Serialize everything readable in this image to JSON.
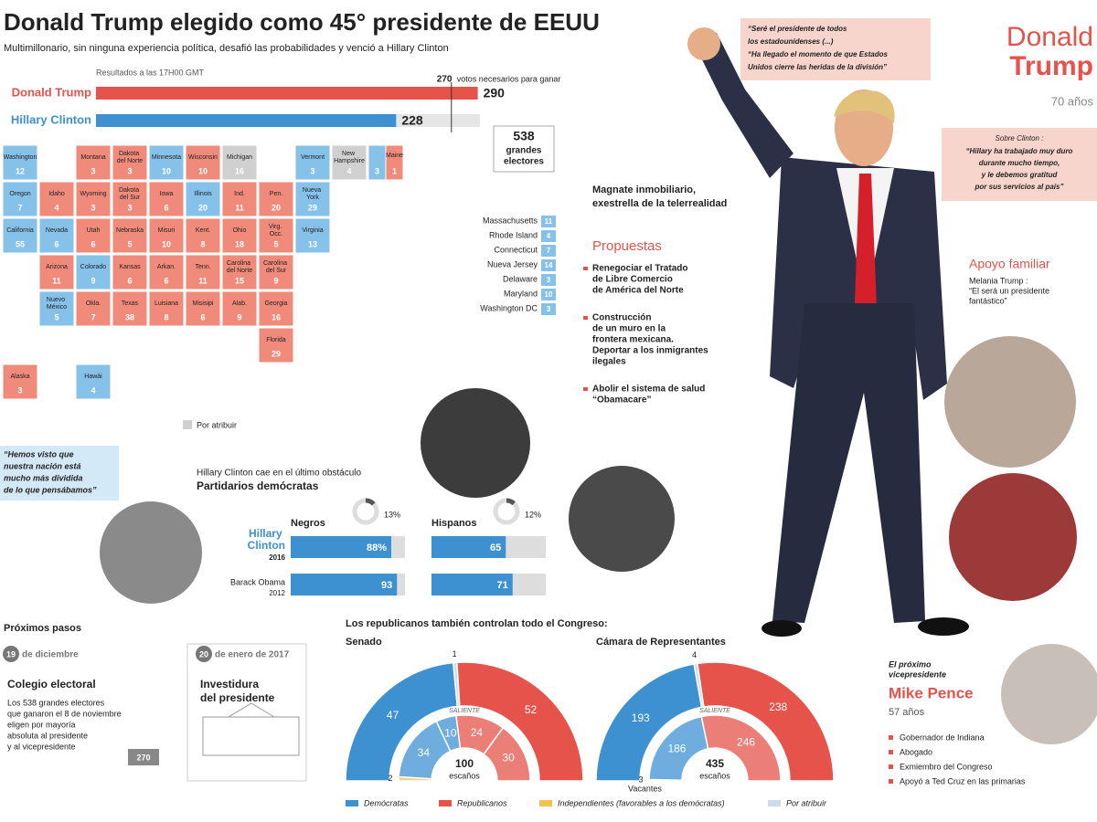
{
  "header": {
    "title": "Donald Trump elegido como 45° presidente de EEUU",
    "subtitle": "Multimillonario, sin ninguna experiencia política, desafió las probabilidades y venció a Hillary Clinton"
  },
  "results": {
    "note": "Resultados a las 17H00 GMT",
    "needed": 270,
    "needed_label": "votos necesarios para ganar",
    "total": 538,
    "total_label": [
      "grandes",
      "electores"
    ],
    "candidates": [
      {
        "name": "Donald Trump",
        "votes": 290,
        "color": "#e5534b"
      },
      {
        "name": "Hillary Clinton",
        "votes": 228,
        "color": "#3d91d1"
      }
    ]
  },
  "map": {
    "colors": {
      "R": "#f08b7b",
      "D": "#86c1ea",
      "P": "#d0d0d0"
    },
    "pending_label": "Por atribuir",
    "states": [
      {
        "name": "Washington",
        "votes": 12,
        "winner": "D"
      },
      {
        "name": "Montana",
        "votes": 3,
        "winner": "R"
      },
      {
        "name": "Dakota del Norte",
        "votes": 3,
        "winner": "R"
      },
      {
        "name": "Minnesota",
        "votes": 10,
        "winner": "D"
      },
      {
        "name": "Wisconsin",
        "votes": 10,
        "winner": "R"
      },
      {
        "name": "Michigan",
        "votes": 16,
        "winner": "P"
      },
      {
        "name": "Vermont",
        "votes": 3,
        "winner": "D"
      },
      {
        "name": "New Hampshire",
        "votes": 4,
        "winner": "P"
      },
      {
        "name": "Maine",
        "split": [
          {
            "votes": 3,
            "winner": "D"
          },
          {
            "votes": 1,
            "winner": "R"
          }
        ]
      },
      {
        "name": "Oregon",
        "votes": 7,
        "winner": "D"
      },
      {
        "name": "Idaho",
        "votes": 4,
        "winner": "R"
      },
      {
        "name": "Wyoming",
        "votes": 3,
        "winner": "R"
      },
      {
        "name": "Dakota del Sur",
        "votes": 3,
        "winner": "R"
      },
      {
        "name": "Iowa",
        "votes": 6,
        "winner": "R"
      },
      {
        "name": "Illinois",
        "votes": 20,
        "winner": "D"
      },
      {
        "name": "Ind.",
        "votes": 11,
        "winner": "R"
      },
      {
        "name": "Pen.",
        "votes": 20,
        "winner": "R"
      },
      {
        "name": "Nueva York",
        "votes": 29,
        "winner": "D"
      },
      {
        "name": "California",
        "votes": 55,
        "winner": "D"
      },
      {
        "name": "Nevada",
        "votes": 6,
        "winner": "D"
      },
      {
        "name": "Utah",
        "votes": 6,
        "winner": "R"
      },
      {
        "name": "Nebraska",
        "votes": 5,
        "winner": "R"
      },
      {
        "name": "Misuri",
        "votes": 10,
        "winner": "R"
      },
      {
        "name": "Kent.",
        "votes": 8,
        "winner": "R"
      },
      {
        "name": "Ohio",
        "votes": 18,
        "winner": "R"
      },
      {
        "name": "Virg. Occ.",
        "votes": 5,
        "winner": "R"
      },
      {
        "name": "Virginia",
        "votes": 13,
        "winner": "D"
      },
      {
        "name": "Arizona",
        "votes": 11,
        "winner": "R"
      },
      {
        "name": "Colorado",
        "votes": 9,
        "winner": "D"
      },
      {
        "name": "Kansas",
        "votes": 6,
        "winner": "R"
      },
      {
        "name": "Arkan.",
        "votes": 6,
        "winner": "R"
      },
      {
        "name": "Tenn.",
        "votes": 11,
        "winner": "R"
      },
      {
        "name": "Carolina del Norte",
        "votes": 15,
        "winner": "R"
      },
      {
        "name": "Carolina del Sur",
        "votes": 9,
        "winner": "R"
      },
      {
        "name": "Nuevo México",
        "votes": 5,
        "winner": "D"
      },
      {
        "name": "Okla.",
        "votes": 7,
        "winner": "R"
      },
      {
        "name": "Texas",
        "votes": 38,
        "winner": "R"
      },
      {
        "name": "Luisiana",
        "votes": 8,
        "winner": "R"
      },
      {
        "name": "Misisipi",
        "votes": 6,
        "winner": "R"
      },
      {
        "name": "Alab.",
        "votes": 9,
        "winner": "R"
      },
      {
        "name": "Georgia",
        "votes": 16,
        "winner": "R"
      },
      {
        "name": "Florida",
        "votes": 29,
        "winner": "R"
      },
      {
        "name": "Alaska",
        "votes": 3,
        "winner": "R"
      },
      {
        "name": "Hawái",
        "votes": 4,
        "winner": "D"
      }
    ],
    "east": [
      {
        "name": "Massachusetts",
        "votes": 11,
        "winner": "D"
      },
      {
        "name": "Rhode Island",
        "votes": 4,
        "winner": "D"
      },
      {
        "name": "Connecticut",
        "votes": 7,
        "winner": "D"
      },
      {
        "name": "Nueva Jersey",
        "votes": 14,
        "winner": "D"
      },
      {
        "name": "Delaware",
        "votes": 3,
        "winner": "D"
      },
      {
        "name": "Maryland",
        "votes": 10,
        "winner": "D"
      },
      {
        "name": "Washington DC",
        "votes": 3,
        "winner": "D"
      }
    ]
  },
  "quotes": {
    "clinton": [
      "“Hemos visto que",
      "nuestra nación está",
      "mucho más dividida",
      "de lo que pensábamos”"
    ],
    "trump": [
      "“Seré el presidente de todos",
      "los estadounidenses (...)",
      "“Ha llegado el momento de que Estados",
      "Unidos cierre las heridas de la división”"
    ],
    "trump_on_clinton": {
      "label": "Sobre Clinton :",
      "lines": [
        "“Hillary ha trabajado muy duro",
        "durante mucho tiempo,",
        "y le debemos gratitud",
        "por sus servicios al país”"
      ]
    }
  },
  "demographics": {
    "kicker": "Hillary Clinton cae en el último obstáculo",
    "title": "Partidarios demócratas",
    "rows": [
      {
        "name": "Hillary Clinton",
        "year": 2016
      },
      {
        "name": "Barack Obama",
        "year": 2012
      }
    ],
    "groups": [
      {
        "name": "Negros",
        "share": {
          "value": 13,
          "label": "13%"
        },
        "values": [
          {
            "value": 88,
            "label": "88%"
          },
          93
        ]
      },
      {
        "name": "Hispanos",
        "share": {
          "value": 12,
          "label": "12%"
        },
        "values": [
          65,
          71
        ]
      }
    ]
  },
  "profile": {
    "first": "Donald",
    "last": "Trump",
    "age": "70 años",
    "bio": [
      "Magnate inmobiliario,",
      "exestrella de la telerrealidad"
    ],
    "proposals_title": "Propuestas",
    "proposals": [
      [
        "Renegociar el Tratado",
        "de Libre Comercio",
        "de América del Norte"
      ],
      [
        "Construcción",
        "de un muro en la",
        "frontera mexicana.",
        "Deportar a los inmigrantes",
        "ilegales"
      ],
      [
        "Abolir el sistema de salud",
        "“Obamacare”"
      ]
    ],
    "family_title": "Apoyo familiar",
    "family_quote": [
      "Melania Trump :",
      "“El será un presidente",
      "fantástico”"
    ]
  },
  "pence": {
    "kicker": [
      "El próximo",
      "vicepresidente"
    ],
    "name": "Mike Pence",
    "age": "57 años",
    "bullets": [
      "Gobernador de Indiana",
      "Abogado",
      "Exmiembro del Congreso",
      "Apoyó a Ted Cruz en las primarias"
    ]
  },
  "steps": {
    "title": "Próximos pasos",
    "items": [
      {
        "day": 19,
        "date": "de diciembre",
        "title": [
          "Colegio electoral"
        ],
        "lines": [
          "Los 538 grandes electores",
          "que ganaron el 8 de noviembre",
          "eligen por mayoría",
          "absoluta al presidente",
          "y al vicepresidente"
        ]
      },
      {
        "day": 20,
        "date": "de enero de 2017",
        "title": [
          "Investidura",
          "del presidente"
        ],
        "lines": []
      }
    ]
  },
  "congress": {
    "title": "Los republicanos también controlan todo el Congreso:",
    "chambers": [
      {
        "name": "Senado",
        "seats": 100,
        "seats_label": "escaños",
        "outgoing_label": "SALIENTE",
        "elected": [
          {
            "party": "D",
            "value": 47
          },
          {
            "party": "P",
            "value": 1
          },
          {
            "party": "R",
            "value": 52
          }
        ],
        "outgoing": [
          {
            "party": "I",
            "value": 2
          },
          {
            "party": "D",
            "value": 34
          },
          {
            "party": "D",
            "value": 10
          },
          {
            "party": "R",
            "value": 24
          },
          {
            "party": "R",
            "value": 30
          }
        ]
      },
      {
        "name": "Cámara de Representantes",
        "seats": 435,
        "seats_label": "escaños",
        "outgoing_label": "SALIENTE",
        "vacancy_label": "Vacantes",
        "elected": [
          {
            "party": "D",
            "value": 193
          },
          {
            "party": "P",
            "value": 4
          },
          {
            "party": "R",
            "value": 238
          }
        ],
        "outgoing": [
          {
            "party": "V",
            "value": 3
          },
          {
            "party": "D",
            "value": 186
          },
          {
            "party": "R",
            "value": 246
          }
        ]
      }
    ],
    "parties": {
      "D": {
        "name": "Demócratas",
        "color": "#3d91d1"
      },
      "R": {
        "name": "Republicanos",
        "color": "#e5534b"
      },
      "I": {
        "name": "Independientes (favorables a los demócratas)",
        "color": "#f2c14e"
      },
      "P": {
        "name": "Por atribuir",
        "color": "#c9dce8"
      }
    }
  }
}
